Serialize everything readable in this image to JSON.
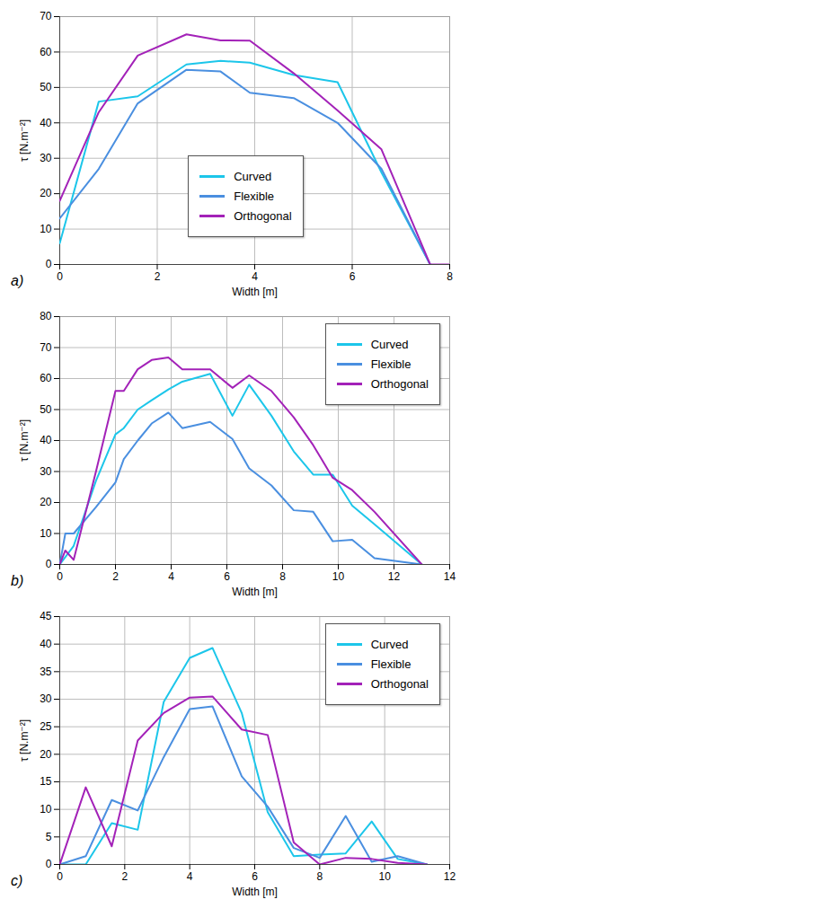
{
  "chart_data": [
    {
      "type": "line",
      "panel": "a)",
      "x_label": "Width [m]",
      "y_label": "τ [N.m⁻²]",
      "xlim": [
        0,
        8
      ],
      "xticks": [
        0,
        2,
        4,
        6,
        8
      ],
      "ylim": [
        0,
        70
      ],
      "yticks": [
        0,
        10,
        20,
        30,
        40,
        50,
        60,
        70
      ],
      "grid": true,
      "legend": "lower center",
      "series": [
        {
          "name": "Curved",
          "color": "#1cc6ea",
          "x": [
            0,
            0.8,
            1.6,
            2.6,
            3.3,
            3.9,
            4.8,
            5.7,
            6.6,
            7.6
          ],
          "values": [
            6,
            46,
            47.5,
            56.5,
            57.5,
            57,
            53.5,
            51.5,
            26,
            0
          ]
        },
        {
          "name": "Flexible",
          "color": "#4a8fe0",
          "x": [
            0,
            0.8,
            1.6,
            2.6,
            3.3,
            3.9,
            4.8,
            5.7,
            6.6,
            7.6
          ],
          "values": [
            13,
            27,
            45.5,
            55,
            54.5,
            48.5,
            47,
            40,
            27,
            0
          ]
        },
        {
          "name": "Orthogonal",
          "color": "#a322b8",
          "x": [
            0,
            0.8,
            1.6,
            2.6,
            3.3,
            3.9,
            4.8,
            5.7,
            6.6,
            7.6,
            8
          ],
          "values": [
            18,
            43,
            59,
            65,
            63.3,
            63.2,
            54,
            43.5,
            32.5,
            0,
            0
          ]
        }
      ]
    },
    {
      "type": "line",
      "panel": "b)",
      "x_label": "Width [m]",
      "y_label": "τ [N.m⁻²]",
      "xlim": [
        0,
        14
      ],
      "xticks": [
        0,
        2,
        4,
        6,
        8,
        10,
        12,
        14
      ],
      "ylim": [
        0,
        80
      ],
      "yticks": [
        0,
        10,
        20,
        30,
        40,
        50,
        60,
        70,
        80
      ],
      "grid": true,
      "legend": "upper right",
      "series": [
        {
          "name": "Curved",
          "color": "#1cc6ea",
          "x": [
            0,
            0.5,
            1.3,
            2.0,
            2.3,
            2.8,
            3.3,
            3.9,
            4.4,
            5.4,
            6.2,
            6.8,
            7.6,
            8.4,
            9.1,
            9.8,
            10.5,
            11.3,
            13
          ],
          "values": [
            0,
            6,
            27,
            42,
            44,
            50,
            53,
            56.5,
            59,
            61.5,
            48,
            58,
            48,
            36.5,
            29,
            29,
            19,
            13,
            0
          ]
        },
        {
          "name": "Flexible",
          "color": "#4a8fe0",
          "x": [
            0,
            0.2,
            0.5,
            1.3,
            2.0,
            2.3,
            2.8,
            3.3,
            3.9,
            4.4,
            5.4,
            6.2,
            6.8,
            7.6,
            8.4,
            9.1,
            9.8,
            10.5,
            11.3,
            13
          ],
          "values": [
            0,
            10,
            10,
            18.5,
            26.5,
            34,
            40,
            45.5,
            49,
            44,
            46,
            40.5,
            31,
            25.5,
            17.5,
            17,
            7.5,
            8,
            2,
            0
          ]
        },
        {
          "name": "Orthogonal",
          "color": "#a322b8",
          "x": [
            0,
            0.2,
            0.5,
            1.3,
            2.0,
            2.3,
            2.8,
            3.3,
            3.9,
            4.4,
            5.4,
            6.2,
            6.8,
            7.6,
            8.4,
            9.1,
            9.8,
            10.5,
            11.3,
            13
          ],
          "values": [
            0,
            4.5,
            1.5,
            30,
            56,
            56,
            63,
            66,
            66.8,
            63,
            63,
            57,
            61,
            56,
            47.5,
            38.5,
            28,
            24,
            17,
            0
          ]
        }
      ]
    },
    {
      "type": "line",
      "panel": "c)",
      "x_label": "Width [m]",
      "y_label": "τ [N.m⁻²]",
      "xlim": [
        0,
        12
      ],
      "xticks": [
        0,
        2,
        4,
        6,
        8,
        10,
        12
      ],
      "ylim": [
        0,
        45
      ],
      "yticks": [
        0,
        5,
        10,
        15,
        20,
        25,
        30,
        35,
        40,
        45
      ],
      "grid": true,
      "legend": "upper right",
      "series": [
        {
          "name": "Curved",
          "color": "#1cc6ea",
          "x": [
            0,
            0.8,
            1.6,
            2.4,
            3.2,
            4.0,
            4.7,
            5.6,
            6.4,
            7.2,
            8.0,
            8.8,
            9.6,
            10.4,
            11.3
          ],
          "values": [
            0,
            0,
            7.5,
            6.3,
            29.5,
            37.5,
            39.3,
            27.5,
            9.5,
            1.5,
            1.8,
            2,
            7.8,
            1,
            0
          ]
        },
        {
          "name": "Flexible",
          "color": "#4a8fe0",
          "x": [
            0,
            0.8,
            1.6,
            2.4,
            3.2,
            4.0,
            4.7,
            5.6,
            6.4,
            7.2,
            8.0,
            8.8,
            9.6,
            10.4,
            11.3
          ],
          "values": [
            0,
            1.5,
            11.7,
            9.8,
            19.5,
            28.2,
            28.7,
            16,
            10.5,
            3,
            1.2,
            8.8,
            0.5,
            1.5,
            0
          ]
        },
        {
          "name": "Orthogonal",
          "color": "#a322b8",
          "x": [
            0,
            0.8,
            1.6,
            2.4,
            3.2,
            4.0,
            4.7,
            5.6,
            6.4,
            7.2,
            8.0,
            8.8,
            9.6,
            10.4,
            11.3
          ],
          "values": [
            0,
            14,
            3.3,
            22.5,
            27.5,
            30.3,
            30.5,
            24.5,
            23.5,
            4,
            0,
            1.2,
            1,
            0.3,
            0
          ]
        }
      ]
    }
  ]
}
